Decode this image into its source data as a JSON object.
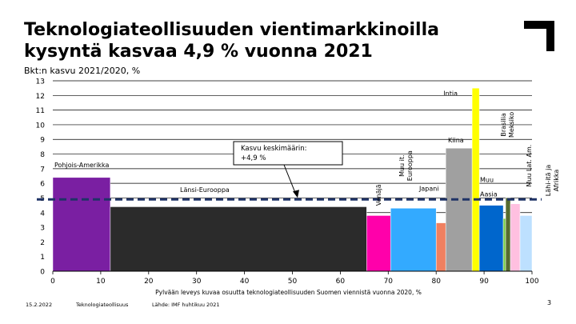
{
  "page": {
    "title": "Teknologiateollisuuden vientimarkkinoilla kysyntä kasvaa 4,9 % vuonna 2021",
    "subtitle": "Bkt:n kasvu 2021/2020, %",
    "footer_date": "15.2.2022",
    "footer_org": "Teknologiateollisuus",
    "footer_source": "Lähde: IMF huhtikuu 2021",
    "page_number": "3",
    "logo_icon": "corner-bracket-logo"
  },
  "chart_data": {
    "type": "variable-width-bar",
    "title": "",
    "xlabel": "Pylvään leveys kuvaa osuutta teknologiateollisuuden Suomen viennistä vuonna 2020, %",
    "ylabel": "",
    "xlim": [
      0,
      100
    ],
    "ylim": [
      0,
      13
    ],
    "xticks": [
      0,
      10,
      20,
      30,
      40,
      50,
      60,
      70,
      80,
      90,
      100
    ],
    "yticks": [
      0,
      1,
      2,
      3,
      4,
      5,
      6,
      7,
      8,
      9,
      10,
      11,
      12,
      13
    ],
    "grid": true,
    "average": {
      "value": 4.9,
      "label": "Kasvu keskimäärin: +4,9 %"
    },
    "bars": [
      {
        "label": "Pohjois-Amerikka",
        "x0": 0,
        "x1": 12,
        "value": 6.4,
        "color": "#7a1fa2"
      },
      {
        "label": "Länsi-Eurooppa",
        "x0": 12,
        "x1": 65.5,
        "value": 4.4,
        "color": "#2b2b2b"
      },
      {
        "label": "Venäjä",
        "x0": 65.5,
        "x1": 70.5,
        "value": 3.8,
        "color": "#ff00aa"
      },
      {
        "label": "Muu it. Eurooppa",
        "x0": 70.5,
        "x1": 80,
        "value": 4.3,
        "color": "#33aaff"
      },
      {
        "label": "Japani",
        "x0": 80,
        "x1": 82,
        "value": 3.3,
        "color": "#f08060"
      },
      {
        "label": "Kiina",
        "x0": 82,
        "x1": 87.5,
        "value": 8.4,
        "color": "#a0a0a0"
      },
      {
        "label": "Intia",
        "x0": 87.5,
        "x1": 89,
        "value": 12.5,
        "color": "#ffff00"
      },
      {
        "label": "Muu Aasia",
        "x0": 89,
        "x1": 94,
        "value": 4.5,
        "color": "#0066cc"
      },
      {
        "label": "Brasilia",
        "x0": 94,
        "x1": 94.5,
        "value": 3.6,
        "color": "#77cc44"
      },
      {
        "label": "Meksiko",
        "x0": 94.5,
        "x1": 95.5,
        "value": 5.0,
        "color": "#556b2f"
      },
      {
        "label": "Muu Lat. Am.",
        "x0": 95.5,
        "x1": 97.5,
        "value": 4.6,
        "color": "#ffc0e0"
      },
      {
        "label": "Lähi-itä ja Afrikka",
        "x0": 97.5,
        "x1": 100,
        "value": 3.8,
        "color": "#bde0ff"
      }
    ]
  }
}
